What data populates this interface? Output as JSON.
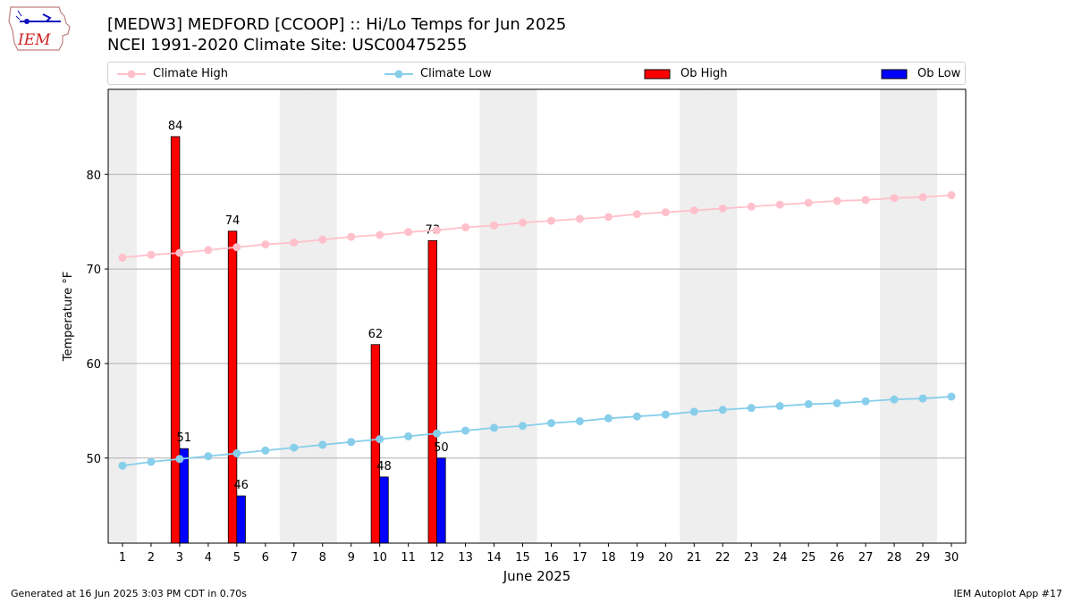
{
  "header": {
    "title_line1": "[MEDW3] MEDFORD [CCOOP] :: Hi/Lo Temps for Jun 2025",
    "title_line2": "NCEI 1991-2020 Climate Site: USC00475255"
  },
  "logo": {
    "text": "IEM",
    "icon": "iowa-state-outline-logo"
  },
  "legend": {
    "climate_high": "Climate High",
    "climate_low": "Climate Low",
    "ob_high": "Ob High",
    "ob_low": "Ob Low"
  },
  "footer": {
    "left": "Generated at 16 Jun 2025 3:03 PM CDT in 0.70s",
    "right": "IEM Autoplot App #17"
  },
  "colors": {
    "climate_high": "#ffc0cb",
    "climate_low": "#87ceeb",
    "ob_high": "#ff0000",
    "ob_low": "#0000ff",
    "weekend_band": "#eeeeee",
    "grid": "#b0b0b0"
  },
  "chart_data": {
    "type": "bar",
    "xlabel": "June 2025",
    "ylabel": "Temperature °F",
    "x": [
      1,
      2,
      3,
      4,
      5,
      6,
      7,
      8,
      9,
      10,
      11,
      12,
      13,
      14,
      15,
      16,
      17,
      18,
      19,
      20,
      21,
      22,
      23,
      24,
      25,
      26,
      27,
      28,
      29,
      30
    ],
    "xlim": [
      0.5,
      30.5
    ],
    "ylim": [
      41,
      89
    ],
    "yticks": [
      50,
      60,
      70,
      80
    ],
    "grid": "horizontal",
    "legend_position": "top",
    "weekend_days": [
      1,
      7,
      8,
      14,
      15,
      21,
      22,
      28,
      29
    ],
    "series": [
      {
        "name": "Climate High",
        "type": "line",
        "values": [
          71.2,
          71.5,
          71.7,
          72.0,
          72.3,
          72.6,
          72.8,
          73.1,
          73.4,
          73.6,
          73.9,
          74.1,
          74.4,
          74.6,
          74.9,
          75.1,
          75.3,
          75.5,
          75.8,
          76.0,
          76.2,
          76.4,
          76.6,
          76.8,
          77.0,
          77.2,
          77.3,
          77.5,
          77.6,
          77.8
        ]
      },
      {
        "name": "Climate Low",
        "type": "line",
        "values": [
          49.2,
          49.6,
          49.9,
          50.2,
          50.5,
          50.8,
          51.1,
          51.4,
          51.7,
          52.0,
          52.3,
          52.6,
          52.9,
          53.2,
          53.4,
          53.7,
          53.9,
          54.2,
          54.4,
          54.6,
          54.9,
          55.1,
          55.3,
          55.5,
          55.7,
          55.8,
          56.0,
          56.2,
          56.3,
          56.5
        ]
      },
      {
        "name": "Ob High",
        "type": "bar",
        "points": [
          {
            "x": 3,
            "y": 84
          },
          {
            "x": 5,
            "y": 74
          },
          {
            "x": 10,
            "y": 62
          },
          {
            "x": 12,
            "y": 73
          }
        ]
      },
      {
        "name": "Ob Low",
        "type": "bar",
        "points": [
          {
            "x": 3,
            "y": 51
          },
          {
            "x": 5,
            "y": 46
          },
          {
            "x": 10,
            "y": 48
          },
          {
            "x": 12,
            "y": 50
          }
        ]
      }
    ]
  }
}
